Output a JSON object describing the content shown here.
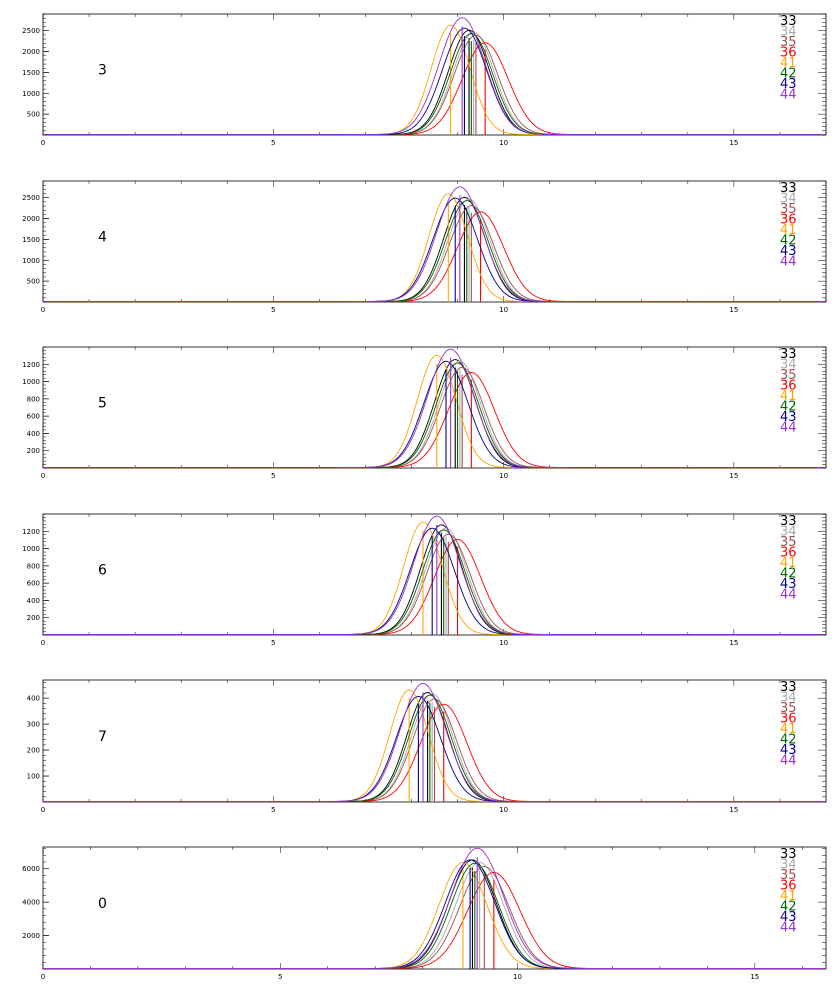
{
  "colors": {
    "33": "#000000",
    "34": "#aaaaaa",
    "35": "#a05050",
    "36": "#ff0000",
    "41": "#ffa500",
    "42": "#006400",
    "43": "#00008b",
    "44": "#9932cc"
  },
  "chart_data": [
    {
      "type": "line",
      "panel_label": "3",
      "xlim": [
        0,
        17
      ],
      "ylim": [
        0,
        2900
      ],
      "xticks": [
        "0",
        "5",
        "10",
        "15"
      ],
      "xtick_values": [
        0,
        5,
        10,
        15
      ],
      "yticks": [
        "500",
        "1000",
        "1500",
        "2000",
        "2500"
      ],
      "ytick_values": [
        500,
        1000,
        1500,
        2000,
        2500
      ],
      "legend_position": "top-right",
      "series": [
        {
          "name": "33",
          "mu": 9.25,
          "sigma": 0.45,
          "amp": 2500
        },
        {
          "name": "34",
          "mu": 9.35,
          "sigma": 0.45,
          "amp": 2450
        },
        {
          "name": "35",
          "mu": 9.4,
          "sigma": 0.47,
          "amp": 2380
        },
        {
          "name": "36",
          "mu": 9.6,
          "sigma": 0.5,
          "amp": 2200
        },
        {
          "name": "41",
          "mu": 8.85,
          "sigma": 0.42,
          "amp": 2620
        },
        {
          "name": "42",
          "mu": 9.3,
          "sigma": 0.46,
          "amp": 2420
        },
        {
          "name": "43",
          "mu": 9.15,
          "sigma": 0.48,
          "amp": 2550
        },
        {
          "name": "44",
          "mu": 9.1,
          "sigma": 0.5,
          "amp": 2800
        }
      ]
    },
    {
      "type": "line",
      "panel_label": "4",
      "xlim": [
        0,
        17
      ],
      "ylim": [
        0,
        2900
      ],
      "xticks": [
        "0",
        "5",
        "10",
        "15"
      ],
      "xtick_values": [
        0,
        5,
        10,
        15
      ],
      "yticks": [
        "500",
        "1000",
        "1500",
        "2000",
        "2500"
      ],
      "ytick_values": [
        500,
        1000,
        1500,
        2000,
        2500
      ],
      "legend_position": "top-right",
      "series": [
        {
          "name": "33",
          "mu": 9.15,
          "sigma": 0.45,
          "amp": 2500
        },
        {
          "name": "34",
          "mu": 9.25,
          "sigma": 0.45,
          "amp": 2450
        },
        {
          "name": "35",
          "mu": 9.3,
          "sigma": 0.47,
          "amp": 2300
        },
        {
          "name": "36",
          "mu": 9.5,
          "sigma": 0.5,
          "amp": 2150
        },
        {
          "name": "41",
          "mu": 8.8,
          "sigma": 0.42,
          "amp": 2580
        },
        {
          "name": "42",
          "mu": 9.2,
          "sigma": 0.46,
          "amp": 2420
        },
        {
          "name": "43",
          "mu": 8.95,
          "sigma": 0.48,
          "amp": 2480
        },
        {
          "name": "44",
          "mu": 9.05,
          "sigma": 0.5,
          "amp": 2750
        }
      ]
    },
    {
      "type": "line",
      "panel_label": "5",
      "xlim": [
        0,
        17
      ],
      "ylim": [
        0,
        1400
      ],
      "xticks": [
        "0",
        "5",
        "10",
        "15"
      ],
      "xtick_values": [
        0,
        5,
        10,
        15
      ],
      "yticks": [
        "200",
        "400",
        "600",
        "800",
        "1000",
        "1200"
      ],
      "ytick_values": [
        200,
        400,
        600,
        800,
        1000,
        1200
      ],
      "legend_position": "top-right",
      "series": [
        {
          "name": "33",
          "mu": 8.95,
          "sigma": 0.45,
          "amp": 1250
        },
        {
          "name": "34",
          "mu": 9.05,
          "sigma": 0.45,
          "amp": 1230
        },
        {
          "name": "35",
          "mu": 9.1,
          "sigma": 0.47,
          "amp": 1160
        },
        {
          "name": "36",
          "mu": 9.3,
          "sigma": 0.5,
          "amp": 1100
        },
        {
          "name": "41",
          "mu": 8.55,
          "sigma": 0.42,
          "amp": 1300
        },
        {
          "name": "42",
          "mu": 9.0,
          "sigma": 0.46,
          "amp": 1210
        },
        {
          "name": "43",
          "mu": 8.75,
          "sigma": 0.48,
          "amp": 1230
        },
        {
          "name": "44",
          "mu": 8.85,
          "sigma": 0.5,
          "amp": 1370
        }
      ]
    },
    {
      "type": "line",
      "panel_label": "6",
      "xlim": [
        0,
        17
      ],
      "ylim": [
        0,
        1400
      ],
      "xticks": [
        "0",
        "5",
        "10",
        "15"
      ],
      "xtick_values": [
        0,
        5,
        10,
        15
      ],
      "yticks": [
        "200",
        "400",
        "600",
        "800",
        "1000",
        "1200"
      ],
      "ytick_values": [
        200,
        400,
        600,
        800,
        1000,
        1200
      ],
      "legend_position": "top-right",
      "series": [
        {
          "name": "33",
          "mu": 8.65,
          "sigma": 0.45,
          "amp": 1270
        },
        {
          "name": "34",
          "mu": 8.75,
          "sigma": 0.45,
          "amp": 1230
        },
        {
          "name": "35",
          "mu": 8.8,
          "sigma": 0.47,
          "amp": 1160
        },
        {
          "name": "36",
          "mu": 9.0,
          "sigma": 0.5,
          "amp": 1100
        },
        {
          "name": "41",
          "mu": 8.25,
          "sigma": 0.42,
          "amp": 1300
        },
        {
          "name": "42",
          "mu": 8.7,
          "sigma": 0.46,
          "amp": 1210
        },
        {
          "name": "43",
          "mu": 8.45,
          "sigma": 0.48,
          "amp": 1230
        },
        {
          "name": "44",
          "mu": 8.55,
          "sigma": 0.5,
          "amp": 1370
        }
      ]
    },
    {
      "type": "line",
      "panel_label": "7",
      "xlim": [
        0,
        17
      ],
      "ylim": [
        0,
        470
      ],
      "xticks": [
        "0",
        "5",
        "10",
        "15"
      ],
      "xtick_values": [
        0,
        5,
        10,
        15
      ],
      "yticks": [
        "100",
        "200",
        "300",
        "400"
      ],
      "ytick_values": [
        100,
        200,
        300,
        400
      ],
      "legend_position": "top-right",
      "series": [
        {
          "name": "33",
          "mu": 8.35,
          "sigma": 0.45,
          "amp": 420
        },
        {
          "name": "34",
          "mu": 8.45,
          "sigma": 0.45,
          "amp": 415
        },
        {
          "name": "35",
          "mu": 8.5,
          "sigma": 0.47,
          "amp": 395
        },
        {
          "name": "36",
          "mu": 8.7,
          "sigma": 0.5,
          "amp": 375
        },
        {
          "name": "41",
          "mu": 7.95,
          "sigma": 0.42,
          "amp": 430
        },
        {
          "name": "42",
          "mu": 8.4,
          "sigma": 0.46,
          "amp": 410
        },
        {
          "name": "43",
          "mu": 8.15,
          "sigma": 0.48,
          "amp": 405
        },
        {
          "name": "44",
          "mu": 8.25,
          "sigma": 0.5,
          "amp": 455
        }
      ]
    },
    {
      "type": "line",
      "panel_label": "0",
      "xlim": [
        0,
        16.5
      ],
      "ylim": [
        0,
        7300
      ],
      "xticks": [
        "0",
        "5",
        "10",
        "15"
      ],
      "xtick_values": [
        0,
        5,
        10,
        15
      ],
      "yticks": [
        "2000",
        "4000",
        "6000"
      ],
      "ytick_values": [
        2000,
        4000,
        6000
      ],
      "legend_position": "top-right",
      "series": [
        {
          "name": "33",
          "mu": 9.05,
          "sigma": 0.5,
          "amp": 6500
        },
        {
          "name": "34",
          "mu": 9.2,
          "sigma": 0.5,
          "amp": 6350
        },
        {
          "name": "35",
          "mu": 9.3,
          "sigma": 0.52,
          "amp": 6100
        },
        {
          "name": "36",
          "mu": 9.5,
          "sigma": 0.55,
          "amp": 5750
        },
        {
          "name": "41",
          "mu": 8.85,
          "sigma": 0.5,
          "amp": 6350
        },
        {
          "name": "42",
          "mu": 9.1,
          "sigma": 0.5,
          "amp": 6300
        },
        {
          "name": "43",
          "mu": 9.0,
          "sigma": 0.52,
          "amp": 6500
        },
        {
          "name": "44",
          "mu": 9.15,
          "sigma": 0.55,
          "amp": 7200
        }
      ]
    }
  ]
}
